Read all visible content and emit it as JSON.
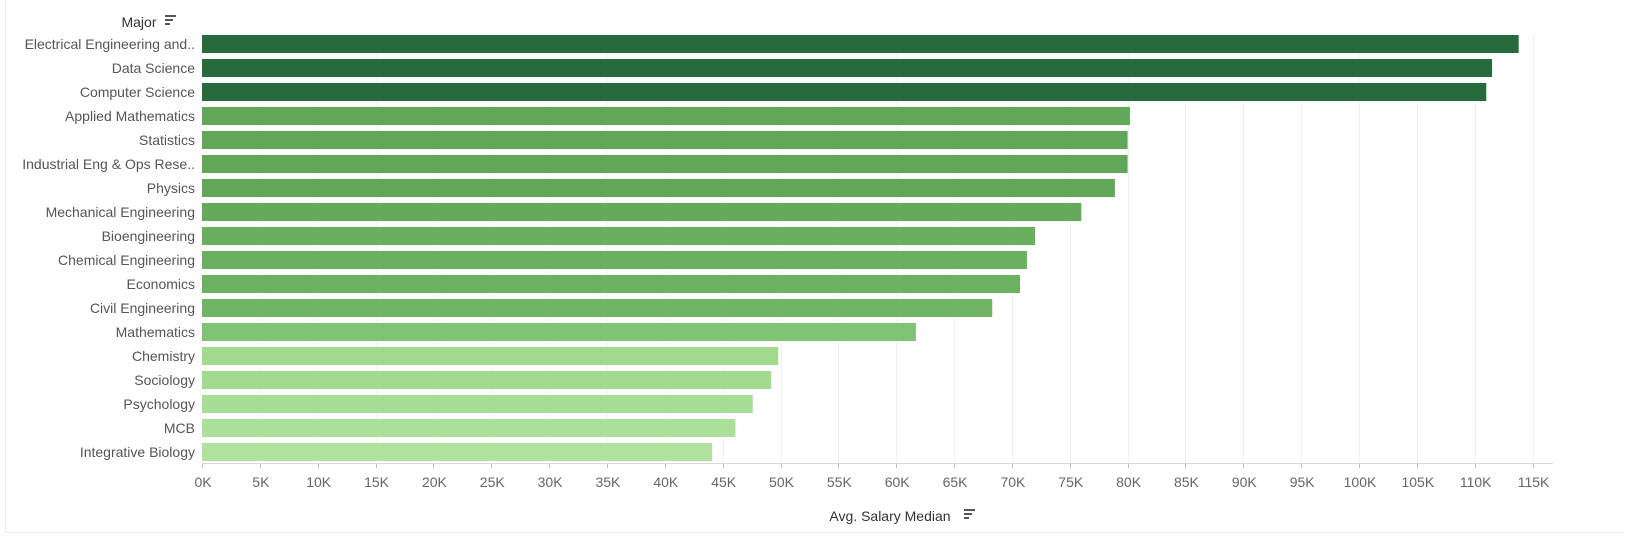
{
  "chart_data": {
    "type": "bar",
    "orientation": "horizontal",
    "ylabel": "Major",
    "xlabel": "Avg. Salary Median",
    "xlim": [
      0,
      118000
    ],
    "x_ticks": [
      0,
      5000,
      10000,
      15000,
      20000,
      25000,
      30000,
      35000,
      40000,
      45000,
      50000,
      55000,
      60000,
      65000,
      70000,
      75000,
      80000,
      85000,
      90000,
      95000,
      100000,
      105000,
      110000,
      115000
    ],
    "x_tick_labels": [
      "0K",
      "5K",
      "10K",
      "15K",
      "20K",
      "25K",
      "30K",
      "35K",
      "40K",
      "45K",
      "50K",
      "55K",
      "60K",
      "65K",
      "70K",
      "75K",
      "80K",
      "85K",
      "90K",
      "95K",
      "100K",
      "105K",
      "110K",
      "115K"
    ],
    "grid": true,
    "categories": [
      "Electrical Engineering and..",
      "Data Science",
      "Computer Science",
      "Applied Mathematics",
      "Statistics",
      "Industrial Eng & Ops Rese..",
      "Physics",
      "Mechanical Engineering",
      "Bioengineering",
      "Chemical Engineering",
      "Economics",
      "Civil Engineering",
      "Mathematics",
      "Chemistry",
      "Sociology",
      "Psychology",
      "MCB",
      "Integrative Biology"
    ],
    "values": [
      113800,
      111500,
      111000,
      80200,
      80000,
      80000,
      78900,
      76000,
      72000,
      71300,
      70700,
      68300,
      61700,
      49800,
      49200,
      47600,
      46100,
      44100
    ],
    "colors": [
      "#276b3c",
      "#276b3c",
      "#276b3c",
      "#60a757",
      "#60a757",
      "#60a757",
      "#60a757",
      "#64aa59",
      "#69b05e",
      "#6ab15f",
      "#6bb260",
      "#6fb563",
      "#7ec472",
      "#a1d98f",
      "#a2da90",
      "#a8dd96",
      "#acdf99",
      "#b0e29d"
    ]
  },
  "icons": {
    "sort": "sort-descending-icon"
  }
}
